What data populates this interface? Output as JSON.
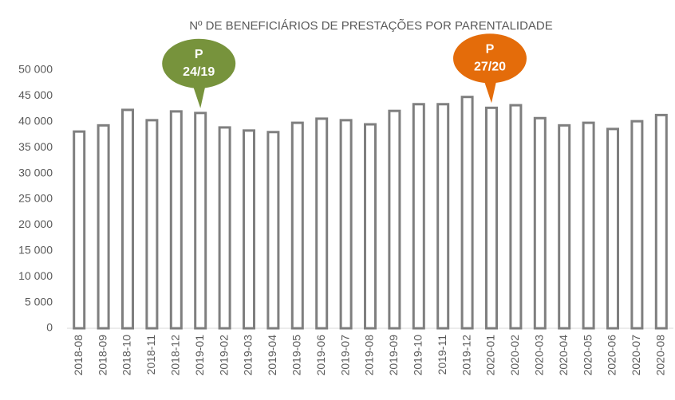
{
  "chart_data": {
    "type": "bar",
    "title": "Nº DE BENEFICIÁRIOS DE PRESTAÇÕES POR PARENTALIDADE",
    "categories": [
      "2018-08",
      "2018-09",
      "2018-10",
      "2018-11",
      "2018-12",
      "2019-01",
      "2019-02",
      "2019-03",
      "2019-04",
      "2019-05",
      "2019-06",
      "2019-07",
      "2019-08",
      "2019-09",
      "2019-10",
      "2019-11",
      "2019-12",
      "2020-01",
      "2020-02",
      "2020-03",
      "2020-04",
      "2020-05",
      "2020-06",
      "2020-07",
      "2020-08"
    ],
    "values": [
      38100,
      39300,
      42300,
      40300,
      42000,
      41700,
      38900,
      38300,
      38000,
      39800,
      40600,
      40300,
      39500,
      42100,
      43400,
      43400,
      44800,
      42700,
      43200,
      40700,
      39300,
      39800,
      38600,
      40100,
      41300
    ],
    "color": "#7f7f7f",
    "ylim": [
      0,
      50000
    ],
    "yticks": [
      0,
      {
        "value": 5000,
        "label": "5 000"
      },
      {
        "value": 10000,
        "label": "10 000"
      },
      {
        "value": 15000,
        "label": "15 000"
      },
      {
        "value": 20000,
        "label": "20 000"
      },
      {
        "value": 25000,
        "label": "25 000"
      },
      {
        "value": 30000,
        "label": "30 000"
      },
      {
        "value": 35000,
        "label": "35 000"
      },
      {
        "value": 40000,
        "label": "40 000"
      },
      {
        "value": 45000,
        "label": "45 000"
      },
      {
        "value": 50000,
        "label": "50 000"
      }
    ],
    "grid": false,
    "annotations": [
      {
        "lines": [
          "P",
          "24/19"
        ],
        "category": "2019-01",
        "color": "#77933c"
      },
      {
        "lines": [
          "P",
          "27/20"
        ],
        "category": "2020-01",
        "color": "#e46c0a"
      }
    ]
  }
}
